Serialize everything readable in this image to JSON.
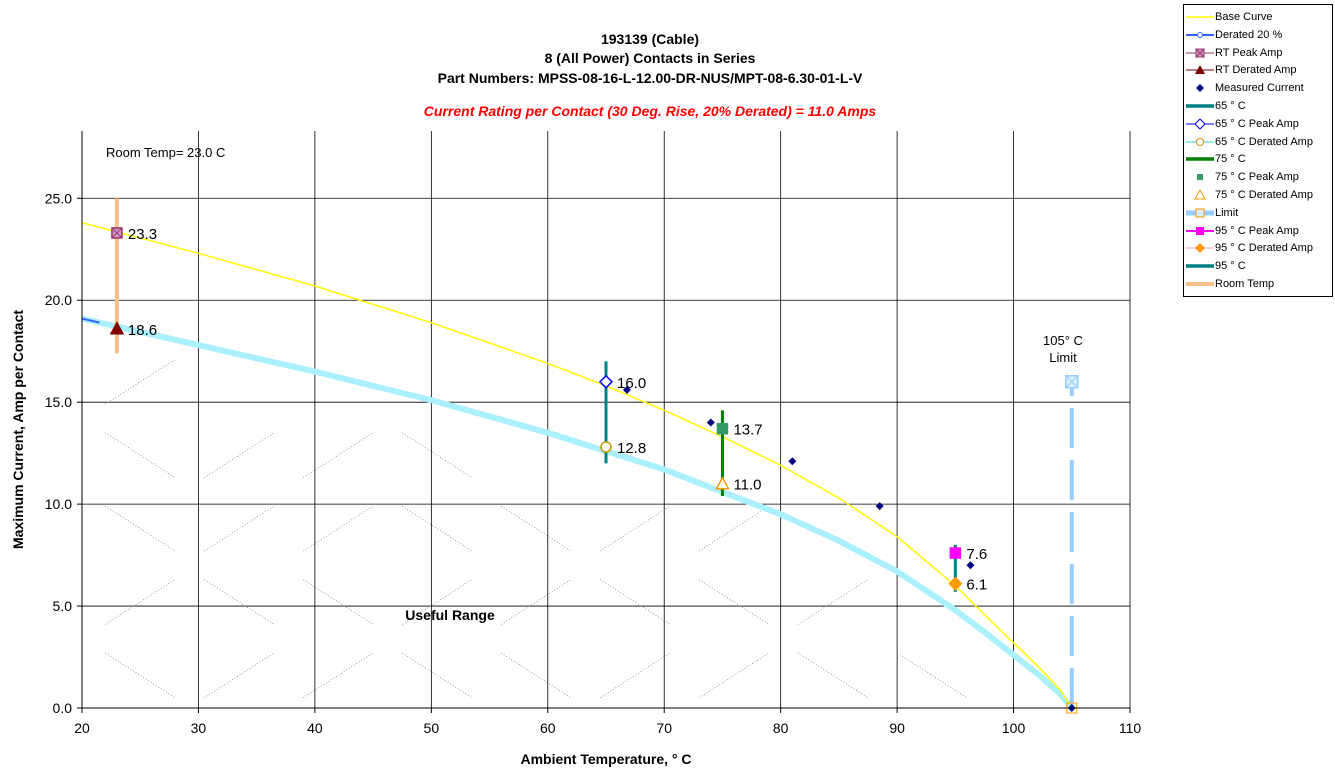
{
  "chart_data": {
    "type": "line",
    "title": "193139 (Cable)",
    "title_lines": [
      "193139 (Cable)",
      "8 (All Power) Contacts in Series",
      "Part Numbers: MPSS-08-16-L-12.00-DR-NUS/MPT-08-6.30-01-L-V"
    ],
    "subtitle": "Current Rating per Contact (30 Deg. Rise, 20% Derated)  = 11.0 Amps",
    "xlabel": "Ambient Temperature,  ° C",
    "ylabel": "Maximum Current, Amp per Contact",
    "xlim": [
      20,
      110
    ],
    "ylim": [
      0,
      25
    ],
    "x_ticks": [
      "20",
      "30",
      "40",
      "50",
      "60",
      "70",
      "80",
      "90",
      "100",
      "110"
    ],
    "y_ticks": [
      "0.0",
      "5.0",
      "10.0",
      "15.0",
      "20.0",
      "25.0"
    ],
    "grid": true,
    "legend_position": "top-right",
    "colors": {
      "base": "#ffff00",
      "derated": "#aaf0ff",
      "derated_edge": "#3366ff",
      "room": "#f7c08a",
      "limit": "#99ccff",
      "teal": "#008080",
      "green": "#008000",
      "navy": "#000080",
      "magenta": "#ff00ff",
      "orange": "#ff9900",
      "rt_peak": "#993366",
      "rt_derated": "#800000"
    },
    "series": [
      {
        "name": "Base Curve",
        "x": [
          20,
          30,
          40,
          50,
          60,
          65,
          70,
          75,
          80,
          85,
          90,
          95,
          98,
          100,
          102,
          104,
          105
        ],
        "y": [
          23.8,
          22.3,
          20.7,
          18.9,
          16.9,
          15.8,
          14.6,
          13.3,
          11.9,
          10.3,
          8.4,
          6.0,
          4.3,
          3.2,
          2.1,
          0.9,
          0
        ]
      },
      {
        "name": "Derated 20 %",
        "x": [
          20,
          30,
          40,
          50,
          60,
          65,
          70,
          75,
          80,
          85,
          90,
          95,
          98,
          100,
          102,
          104,
          105
        ],
        "y": [
          19.1,
          17.8,
          16.5,
          15.1,
          13.5,
          12.6,
          11.7,
          10.6,
          9.5,
          8.2,
          6.7,
          4.8,
          3.5,
          2.6,
          1.7,
          0.7,
          0
        ]
      },
      {
        "name": "Measured Current",
        "x": [
          66.8,
          74,
          81,
          88.5,
          96.3,
          105
        ],
        "y": [
          15.6,
          14.0,
          12.1,
          9.9,
          7.0,
          0
        ]
      },
      {
        "name": "RT Peak Amp",
        "x": [
          23
        ],
        "y": [
          23.3
        ]
      },
      {
        "name": "RT Derated Amp",
        "x": [
          23
        ],
        "y": [
          18.6
        ]
      },
      {
        "name": "65  ° C Peak Amp",
        "x": [
          65
        ],
        "y": [
          16.0
        ]
      },
      {
        "name": "65  ° C Derated Amp",
        "x": [
          65
        ],
        "y": [
          12.8
        ]
      },
      {
        "name": "75  ° C Peak Amp",
        "x": [
          75
        ],
        "y": [
          13.7
        ]
      },
      {
        "name": "75  ° C Derated Amp",
        "x": [
          75
        ],
        "y": [
          11.0
        ]
      },
      {
        "name": "95  ° C Peak Amp",
        "x": [
          95
        ],
        "y": [
          7.6
        ]
      },
      {
        "name": "95  ° C Derated Amp",
        "x": [
          95
        ],
        "y": [
          6.1
        ]
      },
      {
        "name": "65  ° C",
        "x": [
          65,
          65
        ],
        "y": [
          12.0,
          17.0
        ]
      },
      {
        "name": "75  ° C",
        "x": [
          75,
          75
        ],
        "y": [
          10.4,
          14.6
        ]
      },
      {
        "name": "95  ° C",
        "x": [
          95,
          95
        ],
        "y": [
          5.7,
          8.0
        ]
      },
      {
        "name": "Room Temp",
        "x": [
          23,
          23
        ],
        "y": [
          17.4,
          25.0
        ]
      },
      {
        "name": "Limit",
        "x": [
          105,
          105
        ],
        "y": [
          0,
          16.0
        ]
      }
    ],
    "data_labels": [
      {
        "text": "23.3",
        "x": 23,
        "y": 23.3
      },
      {
        "text": "18.6",
        "x": 23,
        "y": 18.6
      },
      {
        "text": "16.0",
        "x": 65,
        "y": 16.0
      },
      {
        "text": "12.8",
        "x": 65,
        "y": 12.8
      },
      {
        "text": "13.7",
        "x": 75,
        "y": 13.7
      },
      {
        "text": "11.0",
        "x": 75,
        "y": 11.0
      },
      {
        "text": "7.6",
        "x": 95,
        "y": 7.6
      },
      {
        "text": "6.1",
        "x": 95,
        "y": 6.1
      }
    ],
    "annotations": {
      "room_temp": "Room Temp= 23.0 C",
      "useful_range": "Useful Range",
      "limit_line1": "105° C",
      "limit_line2": "Limit"
    },
    "legend": [
      {
        "label": "Base Curve",
        "icon": "yellow-line"
      },
      {
        "label": "Derated 20 %",
        "icon": "blue-line-circle"
      },
      {
        "label": "RT Peak Amp",
        "icon": "purple-line-square-x"
      },
      {
        "label": "RT Derated Amp",
        "icon": "maroon-line-triangle"
      },
      {
        "label": "Measured Current",
        "icon": "navy-diamond"
      },
      {
        "label": "65  ° C",
        "icon": "teal-thick-line"
      },
      {
        "label": "65  ° C Peak Amp",
        "icon": "blue-line-diamond"
      },
      {
        "label": "65  ° C Derated Amp",
        "icon": "cyan-line-circle"
      },
      {
        "label": "75  ° C",
        "icon": "green-thick-line"
      },
      {
        "label": "75  ° C Peak Amp",
        "icon": "green-square"
      },
      {
        "label": "75  ° C Derated Amp",
        "icon": "orange-triangle"
      },
      {
        "label": "Limit",
        "icon": "lightblue-thick-square"
      },
      {
        "label": "95  ° C Peak Amp",
        "icon": "magenta-line-square"
      },
      {
        "label": "95  ° C Derated Amp",
        "icon": "pink-line-diamond"
      },
      {
        "label": "95  ° C",
        "icon": "teal-thick-line"
      },
      {
        "label": "Room Temp",
        "icon": "peach-thick-line"
      }
    ]
  }
}
